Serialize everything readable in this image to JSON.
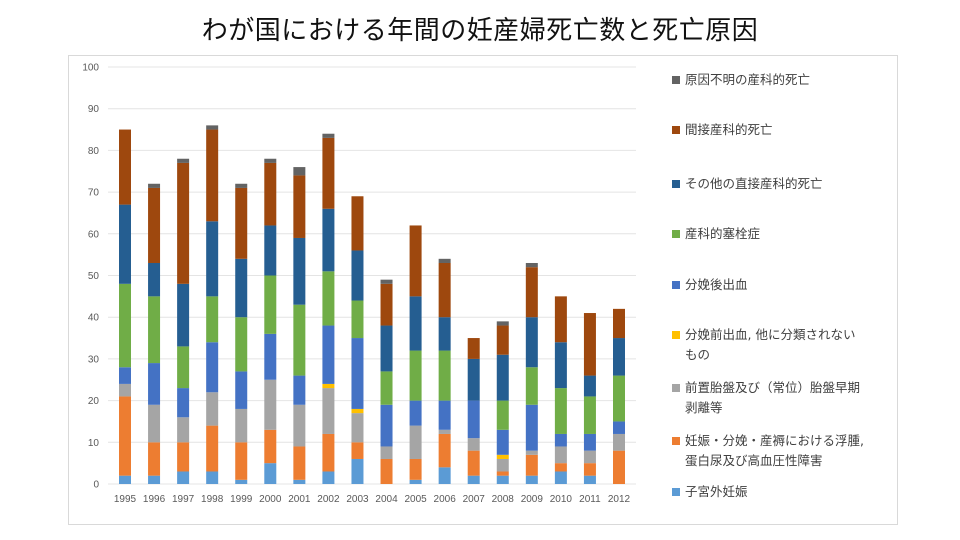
{
  "page": {
    "title": "わが国における年間の妊産婦死亡数と死亡原因"
  },
  "chart_data": {
    "type": "bar",
    "stacked": true,
    "title": "わが国における年間の妊産婦死亡数と死亡原因",
    "xlabel": "",
    "ylabel": "",
    "ylim": [
      0,
      100
    ],
    "yticks": [
      0,
      10,
      20,
      30,
      40,
      50,
      60,
      70,
      80,
      90,
      100
    ],
    "grid": true,
    "legend_position": "right",
    "categories": [
      "1995",
      "1996",
      "1997",
      "1998",
      "1999",
      "2000",
      "2001",
      "2002",
      "2003",
      "2004",
      "2005",
      "2006",
      "2007",
      "2008",
      "2009",
      "2010",
      "2011",
      "2012"
    ],
    "series": [
      {
        "name": "子宮外妊娠",
        "color": "#5B9BD5",
        "values": [
          2,
          2,
          3,
          3,
          1,
          5,
          1,
          3,
          6,
          0,
          1,
          4,
          2,
          2,
          2,
          3,
          2,
          0
        ]
      },
      {
        "name": "妊娠・分娩・産褥における浮腫,\n蛋白尿及び高血圧性障害",
        "color": "#ED7D31",
        "values": [
          19,
          8,
          7,
          11,
          9,
          8,
          8,
          9,
          4,
          6,
          5,
          8,
          6,
          1,
          5,
          2,
          3,
          8
        ]
      },
      {
        "name": "前置胎盤及び（常位）胎盤早期\n剥離等",
        "color": "#A5A5A5",
        "values": [
          3,
          9,
          6,
          8,
          8,
          12,
          10,
          11,
          7,
          3,
          8,
          1,
          3,
          3,
          1,
          4,
          3,
          4
        ]
      },
      {
        "name": "分娩前出血, 他に分類されない\nもの",
        "color": "#FFC000",
        "values": [
          0,
          0,
          0,
          0,
          0,
          0,
          0,
          1,
          1,
          0,
          0,
          0,
          0,
          1,
          0,
          0,
          0,
          0
        ]
      },
      {
        "name": "分娩後出血",
        "color": "#4472C4",
        "values": [
          4,
          10,
          7,
          12,
          9,
          11,
          7,
          14,
          17,
          10,
          6,
          7,
          9,
          6,
          11,
          3,
          4,
          3
        ]
      },
      {
        "name": "産科的塞栓症",
        "color": "#70AD47",
        "values": [
          20,
          16,
          10,
          11,
          13,
          14,
          17,
          13,
          9,
          8,
          12,
          12,
          0,
          7,
          9,
          11,
          9,
          11
        ]
      },
      {
        "name": "その他の直接産科的死亡",
        "color": "#255E91",
        "values": [
          19,
          8,
          15,
          18,
          14,
          12,
          16,
          15,
          12,
          11,
          13,
          8,
          10,
          11,
          12,
          11,
          5,
          9
        ]
      },
      {
        "name": "間接産科的死亡",
        "color": "#9E480E",
        "values": [
          18,
          18,
          29,
          22,
          17,
          15,
          15,
          17,
          13,
          10,
          17,
          13,
          5,
          7,
          12,
          11,
          15,
          7
        ]
      },
      {
        "name": "原因不明の産科的死亡",
        "color": "#636363",
        "values": [
          0,
          1,
          1,
          1,
          1,
          1,
          2,
          1,
          0,
          1,
          0,
          1,
          0,
          1,
          1,
          0,
          0,
          0
        ]
      }
    ],
    "legend_order": [
      "原因不明の産科的死亡",
      "間接産科的死亡",
      "その他の直接産科的死亡",
      "産科的塞栓症",
      "分娩後出血",
      "分娩前出血, 他に分類されない\nもの",
      "前置胎盤及び（常位）胎盤早期\n剥離等",
      "妊娠・分娩・産褥における浮腫,\n蛋白尿及び高血圧性障害",
      "子宮外妊娠"
    ]
  }
}
